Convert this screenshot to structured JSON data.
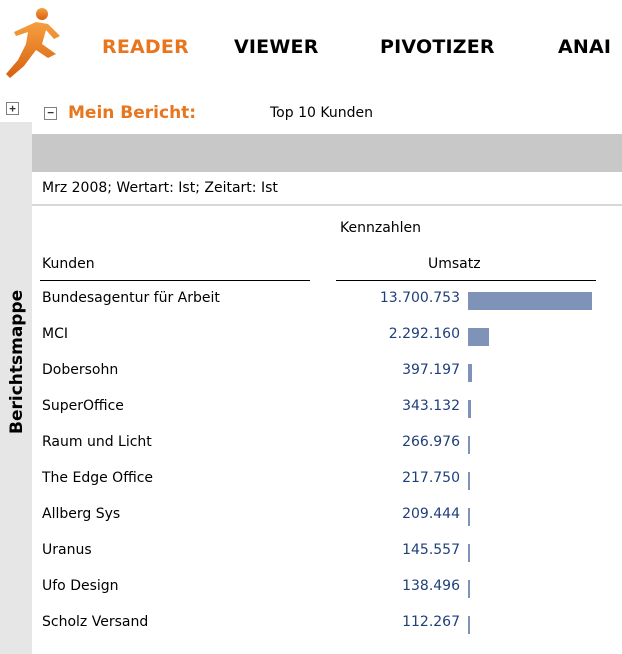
{
  "nav": {
    "items": [
      "READER",
      "VIEWER",
      "PIVOTIZER",
      "ANAI"
    ],
    "active": "READER",
    "accent_color": "#e8761e"
  },
  "sidebar": {
    "tab_label": "Berichtsmappe",
    "expand_symbol": "+"
  },
  "report": {
    "collapse_symbol": "−",
    "label": "Mein Bericht:",
    "name": "Top 10 Kunden",
    "filter": "Mrz 2008; Wertart: Ist; Zeitart: Ist"
  },
  "table": {
    "group_header": "Kennzahlen",
    "row_header": "Kunden",
    "measure_header": "Umsatz",
    "value_color": "#1f3f7a",
    "bar_color": "#7f93b8",
    "rows": [
      {
        "name": "Bundesagentur für Arbeit",
        "value": "13.700.753",
        "amount": 13700753
      },
      {
        "name": "MCI",
        "value": "2.292.160",
        "amount": 2292160
      },
      {
        "name": "Dobersohn",
        "value": "397.197",
        "amount": 397197
      },
      {
        "name": "SuperOffice",
        "value": "343.132",
        "amount": 343132
      },
      {
        "name": "Raum und Licht",
        "value": "266.976",
        "amount": 266976
      },
      {
        "name": "The Edge Office",
        "value": "217.750",
        "amount": 217750
      },
      {
        "name": "Allberg Sys",
        "value": "209.444",
        "amount": 209444
      },
      {
        "name": "Uranus",
        "value": "145.557",
        "amount": 145557
      },
      {
        "name": "Ufo Design",
        "value": "138.496",
        "amount": 138496
      },
      {
        "name": "Scholz Versand",
        "value": "112.267",
        "amount": 112267
      }
    ]
  }
}
